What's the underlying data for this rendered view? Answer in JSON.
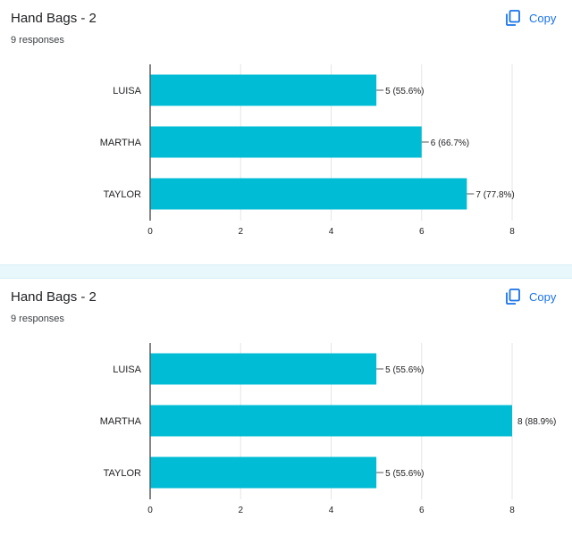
{
  "copy_label": "Copy",
  "cards": [
    {
      "title": "Hand Bags - 2",
      "responses": "9 responses",
      "chart_data": {
        "type": "bar",
        "orientation": "horizontal",
        "categories": [
          "LUISA",
          "MARTHA",
          "TAYLOR"
        ],
        "values": [
          5,
          6,
          7
        ],
        "data_labels": [
          "5 (55.6%)",
          "6 (66.7%)",
          "7 (77.8%)"
        ],
        "xlim": [
          0,
          8
        ],
        "xticks": [
          "0",
          "2",
          "4",
          "6",
          "8"
        ],
        "bar_color": "#00bcd4",
        "grid": true
      }
    },
    {
      "title": "Hand Bags - 2",
      "responses": "9 responses",
      "chart_data": {
        "type": "bar",
        "orientation": "horizontal",
        "categories": [
          "LUISA",
          "MARTHA",
          "TAYLOR"
        ],
        "values": [
          5,
          8,
          5
        ],
        "data_labels": [
          "5 (55.6%)",
          "8 (88.9%)",
          "5 (55.6%)"
        ],
        "xlim": [
          0,
          8
        ],
        "xticks": [
          "0",
          "2",
          "4",
          "6",
          "8"
        ],
        "bar_color": "#00bcd4",
        "grid": true
      }
    }
  ]
}
